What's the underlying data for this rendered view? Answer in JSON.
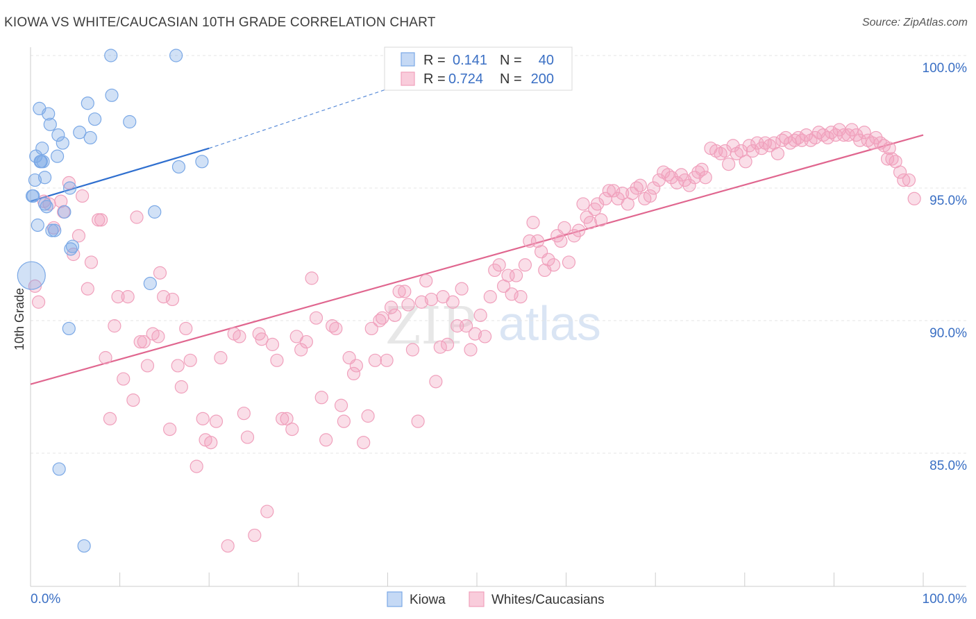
{
  "title": "KIOWA VS WHITE/CAUCASIAN 10TH GRADE CORRELATION CHART",
  "source": "Source: ZipAtlas.com",
  "watermark": {
    "zip": "ZIP",
    "atlas": "atlas"
  },
  "legend": {
    "rows": [
      {
        "r_label": "R =",
        "r_value": "0.141",
        "n_label": "N =",
        "n_value": "40"
      },
      {
        "r_label": "R =",
        "r_value": "0.724",
        "n_label": "N =",
        "n_value": "200"
      }
    ]
  },
  "chart_data": {
    "type": "scatter",
    "title": "KIOWA VS WHITE/CAUCASIAN 10TH GRADE CORRELATION CHART",
    "xlabel": "",
    "ylabel": "10th Grade",
    "xlim": [
      0,
      100
    ],
    "ylim": [
      80.5,
      100.8
    ],
    "x_tick_labels": [
      "0.0%",
      "100.0%"
    ],
    "y_tick_labels": [
      "100.0%",
      "95.0%",
      "90.0%",
      "85.0%"
    ],
    "y_ticks": [
      100,
      95,
      90,
      85
    ],
    "grid": true,
    "legend_position": "bottom",
    "colors": {
      "kiowa": "#7aa8e6",
      "kiowa_line": "#2f6fcf",
      "whites": "#f0a0bc",
      "whites_line": "#e0668f",
      "tick_text": "#3a6fc4"
    },
    "series": [
      {
        "name": "Kiowa",
        "r": 0.141,
        "n": 40,
        "trend": {
          "x": [
            0,
            20
          ],
          "y": [
            94.5,
            96.5
          ],
          "dashed_to": [
            45,
            99.3
          ]
        },
        "points": [
          [
            0.2,
            94.7
          ],
          [
            0.5,
            95.3
          ],
          [
            0.6,
            96.2
          ],
          [
            0.8,
            93.6
          ],
          [
            1,
            98.0
          ],
          [
            1.1,
            96.0
          ],
          [
            1.3,
            96.5
          ],
          [
            1.4,
            96.0
          ],
          [
            1.6,
            95.4
          ],
          [
            1.8,
            94.3
          ],
          [
            2,
            97.8
          ],
          [
            2.2,
            97.4
          ],
          [
            2.4,
            93.4
          ],
          [
            3,
            96.2
          ],
          [
            3.1,
            97.0
          ],
          [
            3.6,
            96.7
          ],
          [
            3.8,
            94.1
          ],
          [
            4.7,
            92.8
          ],
          [
            4.5,
            92.7
          ],
          [
            4.4,
            95.0
          ],
          [
            5.5,
            97.1
          ],
          [
            6.4,
            98.2
          ],
          [
            6.7,
            96.9
          ],
          [
            7.2,
            97.6
          ],
          [
            9.1,
            98.5
          ],
          [
            9.0,
            100.0
          ],
          [
            11.1,
            97.5
          ],
          [
            13.9,
            94.1
          ],
          [
            13.4,
            91.4
          ],
          [
            16.3,
            100.0
          ],
          [
            16.6,
            95.8
          ],
          [
            19.2,
            96.0
          ],
          [
            3.2,
            84.4
          ],
          [
            6.0,
            81.5
          ],
          [
            4.3,
            89.7
          ],
          [
            0.3,
            94.7
          ],
          [
            1.6,
            94.4
          ],
          [
            0.1,
            91.7
          ],
          [
            2.7,
            93.4
          ],
          [
            1.2,
            96.0
          ]
        ]
      },
      {
        "name": "Whites/Caucasians",
        "r": 0.724,
        "n": 200,
        "trend": {
          "x": [
            0,
            100
          ],
          "y": [
            87.6,
            97.0
          ]
        },
        "points": [
          [
            0.5,
            91.3
          ],
          [
            0.9,
            90.7
          ],
          [
            1.5,
            94.5
          ],
          [
            2.1,
            94.4
          ],
          [
            2.6,
            93.5
          ],
          [
            3.4,
            94.5
          ],
          [
            3.7,
            94.1
          ],
          [
            4.3,
            95.2
          ],
          [
            4.8,
            92.5
          ],
          [
            5.4,
            93.2
          ],
          [
            5.8,
            94.7
          ],
          [
            6.4,
            91.2
          ],
          [
            6.8,
            92.2
          ],
          [
            7.6,
            93.8
          ],
          [
            7.9,
            93.8
          ],
          [
            8.4,
            88.6
          ],
          [
            8.9,
            86.3
          ],
          [
            9.4,
            89.8
          ],
          [
            9.8,
            90.9
          ],
          [
            10.4,
            87.8
          ],
          [
            10.9,
            90.9
          ],
          [
            11.5,
            87.0
          ],
          [
            11.9,
            93.9
          ],
          [
            12.3,
            89.2
          ],
          [
            12.7,
            89.2
          ],
          [
            13.1,
            88.3
          ],
          [
            13.7,
            89.5
          ],
          [
            14.3,
            89.4
          ],
          [
            14.5,
            91.8
          ],
          [
            14.9,
            90.9
          ],
          [
            15.6,
            85.9
          ],
          [
            15.9,
            90.8
          ],
          [
            16.5,
            88.3
          ],
          [
            16.9,
            87.5
          ],
          [
            17.4,
            89.7
          ],
          [
            17.9,
            88.5
          ],
          [
            18.6,
            84.5
          ],
          [
            19.3,
            86.3
          ],
          [
            19.6,
            85.5
          ],
          [
            20.2,
            85.4
          ],
          [
            20.8,
            86.2
          ],
          [
            21.3,
            88.6
          ],
          [
            22.1,
            81.5
          ],
          [
            22.8,
            89.5
          ],
          [
            23.4,
            89.4
          ],
          [
            23.9,
            86.5
          ],
          [
            24.3,
            85.6
          ],
          [
            25.1,
            81.9
          ],
          [
            25.6,
            89.5
          ],
          [
            25.9,
            89.3
          ],
          [
            26.5,
            82.8
          ],
          [
            27.1,
            89.1
          ],
          [
            27.6,
            88.5
          ],
          [
            28.2,
            86.3
          ],
          [
            28.7,
            86.3
          ],
          [
            29.3,
            85.9
          ],
          [
            29.8,
            89.4
          ],
          [
            30.3,
            88.9
          ],
          [
            30.9,
            89.2
          ],
          [
            31.5,
            91.6
          ],
          [
            32.0,
            90.1
          ],
          [
            32.6,
            87.1
          ],
          [
            33.1,
            85.5
          ],
          [
            33.8,
            89.8
          ],
          [
            34.2,
            89.7
          ],
          [
            34.8,
            86.8
          ],
          [
            35.1,
            86.2
          ],
          [
            35.7,
            88.6
          ],
          [
            36.2,
            88.0
          ],
          [
            36.5,
            88.3
          ],
          [
            37.3,
            85.4
          ],
          [
            37.8,
            86.4
          ],
          [
            38.2,
            89.7
          ],
          [
            38.6,
            88.5
          ],
          [
            39.1,
            90.0
          ],
          [
            39.4,
            90.1
          ],
          [
            39.9,
            88.5
          ],
          [
            40.4,
            90.5
          ],
          [
            40.8,
            90.2
          ],
          [
            41.3,
            91.1
          ],
          [
            41.9,
            91.1
          ],
          [
            42.3,
            90.6
          ],
          [
            42.8,
            88.9
          ],
          [
            43.4,
            86.2
          ],
          [
            43.8,
            90.7
          ],
          [
            44.3,
            91.5
          ],
          [
            44.9,
            90.8
          ],
          [
            45.4,
            87.7
          ],
          [
            45.9,
            89.0
          ],
          [
            46.2,
            90.9
          ],
          [
            46.7,
            89.1
          ],
          [
            47.3,
            90.7
          ],
          [
            47.8,
            89.8
          ],
          [
            48.3,
            91.2
          ],
          [
            48.8,
            89.8
          ],
          [
            49.3,
            88.9
          ],
          [
            49.8,
            89.5
          ],
          [
            50.4,
            90.2
          ],
          [
            50.9,
            89.4
          ],
          [
            51.5,
            90.9
          ],
          [
            52.0,
            91.9
          ],
          [
            52.5,
            92.1
          ],
          [
            53.0,
            91.3
          ],
          [
            53.5,
            91.7
          ],
          [
            53.9,
            91.0
          ],
          [
            54.4,
            91.7
          ],
          [
            54.9,
            90.9
          ],
          [
            55.4,
            92.1
          ],
          [
            55.9,
            93.0
          ],
          [
            56.3,
            93.7
          ],
          [
            56.8,
            93.0
          ],
          [
            57.2,
            92.6
          ],
          [
            57.6,
            91.9
          ],
          [
            58.0,
            92.3
          ],
          [
            58.6,
            92.1
          ],
          [
            59.0,
            93.2
          ],
          [
            59.4,
            93.0
          ],
          [
            59.8,
            93.5
          ],
          [
            60.3,
            92.2
          ],
          [
            60.9,
            93.2
          ],
          [
            61.4,
            93.4
          ],
          [
            61.9,
            94.4
          ],
          [
            62.3,
            93.9
          ],
          [
            62.7,
            93.7
          ],
          [
            63.2,
            94.2
          ],
          [
            63.5,
            94.4
          ],
          [
            63.9,
            93.8
          ],
          [
            64.4,
            94.6
          ],
          [
            64.8,
            94.9
          ],
          [
            65.3,
            94.9
          ],
          [
            65.8,
            94.6
          ],
          [
            66.3,
            94.8
          ],
          [
            66.9,
            94.4
          ],
          [
            67.4,
            94.8
          ],
          [
            67.9,
            95.0
          ],
          [
            68.3,
            95.1
          ],
          [
            68.8,
            94.6
          ],
          [
            69.4,
            94.7
          ],
          [
            69.8,
            95.0
          ],
          [
            70.4,
            95.3
          ],
          [
            70.9,
            95.6
          ],
          [
            71.4,
            95.5
          ],
          [
            71.8,
            95.4
          ],
          [
            72.4,
            95.2
          ],
          [
            72.9,
            95.5
          ],
          [
            73.3,
            95.3
          ],
          [
            73.8,
            95.1
          ],
          [
            74.4,
            95.4
          ],
          [
            74.8,
            95.6
          ],
          [
            75.2,
            95.7
          ],
          [
            75.6,
            95.4
          ],
          [
            76.2,
            96.5
          ],
          [
            76.8,
            96.4
          ],
          [
            77.3,
            96.3
          ],
          [
            77.8,
            96.4
          ],
          [
            78.2,
            95.9
          ],
          [
            78.7,
            96.6
          ],
          [
            79.1,
            96.3
          ],
          [
            79.6,
            96.4
          ],
          [
            80.1,
            96.0
          ],
          [
            80.5,
            96.6
          ],
          [
            80.9,
            96.4
          ],
          [
            81.4,
            96.7
          ],
          [
            81.9,
            96.5
          ],
          [
            82.3,
            96.7
          ],
          [
            82.8,
            96.6
          ],
          [
            83.3,
            96.7
          ],
          [
            83.7,
            96.3
          ],
          [
            84.2,
            96.8
          ],
          [
            84.6,
            96.9
          ],
          [
            85.1,
            96.7
          ],
          [
            85.6,
            96.8
          ],
          [
            86.0,
            96.9
          ],
          [
            86.4,
            96.8
          ],
          [
            86.9,
            97.0
          ],
          [
            87.4,
            96.8
          ],
          [
            87.9,
            96.9
          ],
          [
            88.3,
            97.1
          ],
          [
            88.8,
            97.0
          ],
          [
            89.3,
            96.9
          ],
          [
            89.7,
            97.1
          ],
          [
            90.2,
            97.0
          ],
          [
            90.6,
            97.2
          ],
          [
            91.1,
            97.0
          ],
          [
            91.6,
            97.0
          ],
          [
            92.0,
            97.2
          ],
          [
            92.5,
            97.0
          ],
          [
            92.9,
            96.8
          ],
          [
            93.4,
            97.1
          ],
          [
            93.8,
            96.8
          ],
          [
            94.3,
            96.7
          ],
          [
            94.7,
            96.9
          ],
          [
            95.2,
            96.7
          ],
          [
            95.6,
            96.6
          ],
          [
            96.0,
            96.1
          ],
          [
            96.5,
            96.1
          ],
          [
            96.9,
            96.0
          ],
          [
            97.4,
            95.6
          ],
          [
            97.8,
            95.3
          ],
          [
            98.4,
            95.3
          ],
          [
            99.0,
            94.6
          ],
          [
            96.2,
            96.5
          ]
        ]
      }
    ]
  }
}
